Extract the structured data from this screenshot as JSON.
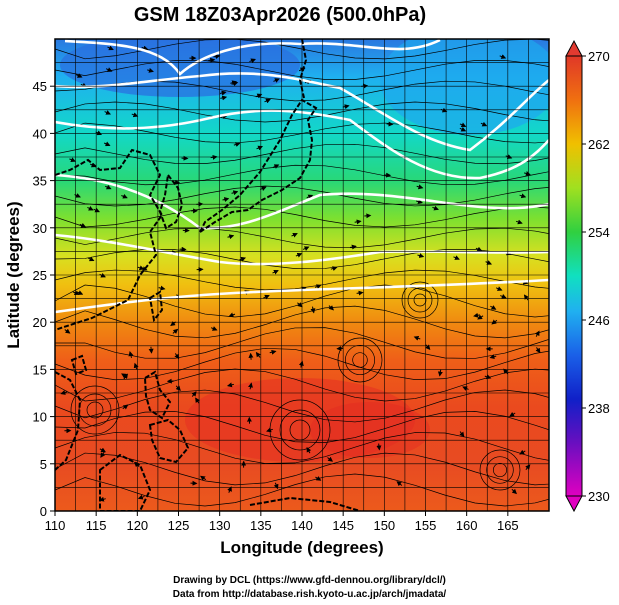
{
  "title": "GSM 18Z03Apr2026 (500.0hPa)",
  "xlabel": "Longitude (degrees)",
  "ylabel": "Latitude  (degrees)",
  "credits": {
    "line1": "Drawing by DCL (https://www.gfd-dennou.org/library/dcl/)",
    "line2": "Data from http://database.rish.kyoto-u.ac.jp/arch/jmadata/"
  },
  "map": {
    "lon_range": [
      110,
      170
    ],
    "lat_range": [
      0,
      50
    ],
    "x_ticks": [
      110,
      115,
      120,
      125,
      130,
      135,
      140,
      145,
      150,
      155,
      160,
      165
    ],
    "y_ticks": [
      0,
      5,
      10,
      15,
      20,
      25,
      30,
      35,
      40,
      45
    ],
    "grid": true,
    "field": "temperature (K), colour-shaded",
    "overlay": "wind streamlines with arrows; white contour lines; coastlines"
  },
  "colorbar": {
    "min": 230,
    "max": 270,
    "labels": [
      230,
      238,
      246,
      254,
      262,
      270
    ],
    "colors": [
      "#e000c0",
      "#2020d0",
      "#20a0f0",
      "#10e0c0",
      "#30d040",
      "#a0e020",
      "#f0d000",
      "#f09000",
      "#f05010",
      "#e03020"
    ]
  },
  "chart_data": {
    "type": "heatmap",
    "title": "GSM 18Z03Apr2026 (500.0hPa)",
    "xlabel": "Longitude (degrees)",
    "ylabel": "Latitude  (degrees)",
    "xlim": [
      110,
      170
    ],
    "ylim": [
      0,
      50
    ],
    "colorbar_range": [
      230,
      270
    ],
    "approx_values_by_latitude": [
      {
        "lat": 47,
        "value": 244
      },
      {
        "lat": 40,
        "value": 250
      },
      {
        "lat": 35,
        "value": 255
      },
      {
        "lat": 30,
        "value": 259
      },
      {
        "lat": 25,
        "value": 262
      },
      {
        "lat": 20,
        "value": 265
      },
      {
        "lat": 10,
        "value": 267
      },
      {
        "lat": 0,
        "value": 266
      }
    ]
  }
}
